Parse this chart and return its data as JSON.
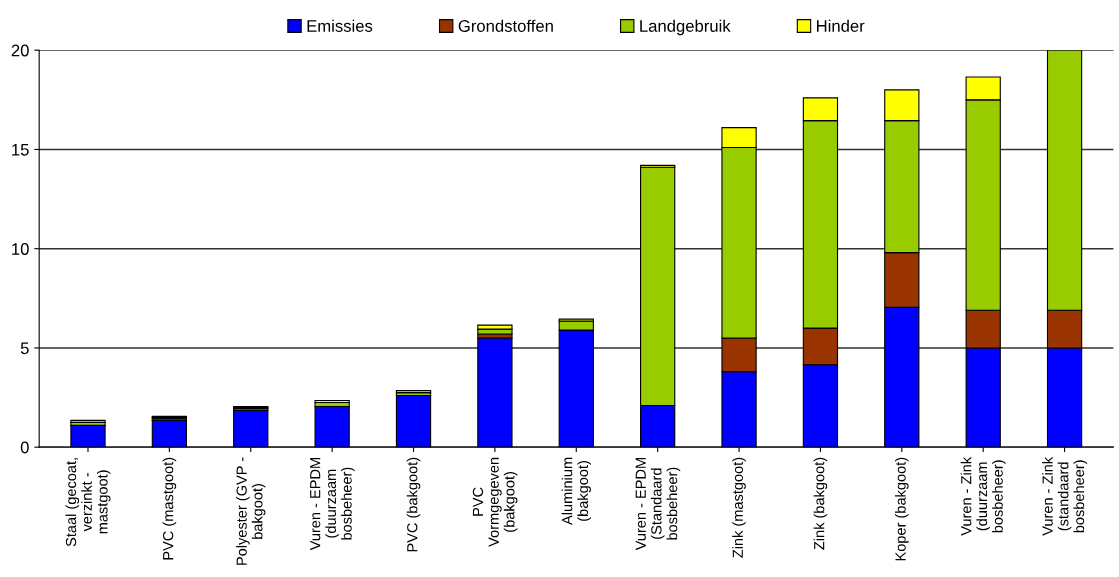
{
  "chart_data": {
    "type": "bar",
    "stacked": true,
    "categories": [
      "Staal (gecoat,\nverzinkt -\nmastgoot)",
      "PVC (mastgoot)",
      "Polyester (GVP -\nbakgoot)",
      "Vuren - EPDM\n(duurzaam\nbosbeheer)",
      "PVC (bakgoot)",
      "PVC\nVormgegeven\n(bakgoot)",
      "Aluminium\n(bakgoot)",
      "Vuren - EPDM\n(Standaard\nbosbeheer)",
      "Zink (mastgoot)",
      "Zink (bakgoot)",
      "Koper (bakgoot)",
      "Vuren - Zink\n(duurzaam\nbosbeheer)",
      "Vuren - Zink\n(standaard\nbosbeheer)"
    ],
    "series": [
      {
        "name": "Emissies",
        "color": "#0000ff",
        "values": [
          1.1,
          1.35,
          1.85,
          2.05,
          2.6,
          5.5,
          5.9,
          2.1,
          3.8,
          4.15,
          7.05,
          5.0,
          5.0
        ]
      },
      {
        "name": "Grondstoffen",
        "color": "#993300",
        "values": [
          null,
          0.1,
          0.1,
          null,
          null,
          0.2,
          null,
          null,
          1.7,
          1.85,
          2.75,
          1.9,
          1.9
        ]
      },
      {
        "name": "Landgebruik",
        "color": "#99cc00",
        "values": [
          0.15,
          0.05,
          0.05,
          0.2,
          0.15,
          0.25,
          0.45,
          12.0,
          9.6,
          10.45,
          6.65,
          10.6,
          13.1
        ]
      },
      {
        "name": "Hinder",
        "color": "#ffff00",
        "values": [
          0.1,
          0.05,
          0.05,
          0.1,
          0.1,
          0.2,
          0.1,
          0.1,
          1.0,
          1.15,
          1.55,
          1.15,
          null
        ]
      }
    ],
    "ylim": [
      0,
      20
    ],
    "yticks": [
      0,
      5,
      10,
      15,
      20
    ],
    "grid": "y",
    "legend": "top"
  }
}
